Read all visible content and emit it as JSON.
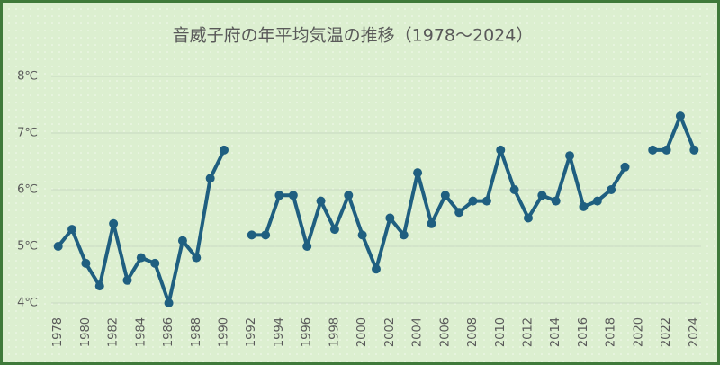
{
  "chart_data": {
    "type": "line",
    "title": "音威子府の年平均気温の推移（1978～2024）",
    "categories": [
      "1978",
      null,
      "1980",
      null,
      "1982",
      null,
      "1984",
      null,
      "1986",
      null,
      "1988",
      null,
      "1990",
      null,
      "1992",
      null,
      "1994",
      null,
      "1996",
      null,
      "1998",
      null,
      "2000",
      null,
      "2002",
      null,
      "2004",
      null,
      "2006",
      null,
      "2008",
      null,
      "2010",
      null,
      "2012",
      null,
      "2014",
      null,
      "2016",
      null,
      "2018",
      null,
      "2020",
      null,
      "2022",
      null,
      "2024"
    ],
    "values": [
      5.0,
      5.3,
      4.7,
      4.3,
      5.4,
      4.4,
      4.8,
      4.7,
      4.0,
      5.1,
      4.8,
      6.2,
      6.7,
      null,
      5.2,
      5.2,
      5.9,
      5.9,
      5.0,
      5.8,
      5.3,
      5.9,
      5.2,
      4.6,
      5.5,
      5.2,
      6.3,
      5.4,
      5.9,
      5.6,
      5.8,
      5.8,
      6.7,
      6.0,
      5.5,
      5.9,
      5.8,
      6.6,
      5.7,
      5.8,
      6.0,
      6.4,
      null,
      6.7,
      6.7,
      7.3,
      6.7
    ],
    "color": "#1f5f80",
    "ylim": [
      4,
      8
    ],
    "yticks": [
      {
        "value": 4,
        "label": "4℃"
      },
      {
        "value": 5,
        "label": "5℃"
      },
      {
        "value": 6,
        "label": "6℃"
      },
      {
        "value": 7,
        "label": "7℃"
      },
      {
        "value": 8,
        "label": "8℃"
      }
    ],
    "grid": true
  }
}
